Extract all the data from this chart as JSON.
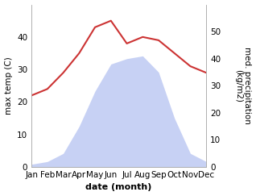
{
  "months": [
    "Jan",
    "Feb",
    "Mar",
    "Apr",
    "May",
    "Jun",
    "Jul",
    "Aug",
    "Sep",
    "Oct",
    "Nov",
    "Dec"
  ],
  "temp": [
    22,
    24,
    29,
    35,
    43,
    45,
    38,
    40,
    39,
    35,
    31,
    29
  ],
  "precip": [
    1,
    2,
    5,
    15,
    28,
    38,
    40,
    41,
    35,
    18,
    5,
    2
  ],
  "temp_color": "#cc3333",
  "precip_fill_color": "#b0bef0",
  "precip_fill_alpha": 0.7,
  "left_ylim": [
    0,
    50
  ],
  "left_yticks": [
    0,
    10,
    20,
    30,
    40
  ],
  "right_ylim": [
    0,
    60
  ],
  "right_yticks": [
    0,
    10,
    20,
    30,
    40,
    50
  ],
  "xlabel": "date (month)",
  "ylabel_left": "max temp (C)",
  "ylabel_right": "med. precipitation\n(kg/m2)",
  "bg_color": "#ffffff",
  "label_fontsize": 7.5
}
